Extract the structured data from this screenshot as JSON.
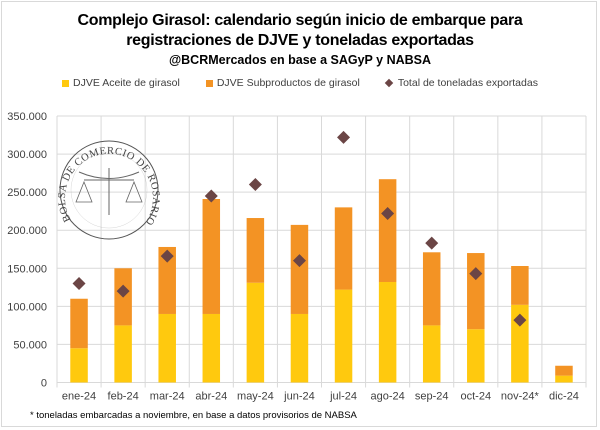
{
  "title": {
    "line1": "Complejo Girasol: calendario según inicio de embarque para",
    "line2": "registraciones de DJVE y toneladas exportadas",
    "source": "@BCRMercados en base a SAGyP y NABSA"
  },
  "watermark": {
    "text": "BOLSA DE COMERCIO DE ROSARIO"
  },
  "footnote": "* toneladas embarcadas a noviembre, en base a datos provisorios de NABSA",
  "colors": {
    "aceite": "#FFC90E",
    "subproductos": "#F39324",
    "total": "#6B4545",
    "grid": "#d9d9d9"
  },
  "chart_data": {
    "type": "bar",
    "stacked": true,
    "title": "Complejo Girasol: calendario según inicio de embarque para registraciones de DJVE y toneladas exportadas",
    "categories": [
      "ene-24",
      "feb-24",
      "mar-24",
      "abr-24",
      "may-24",
      "jun-24",
      "jul-24",
      "ago-24",
      "sep-24",
      "oct-24",
      "nov-24*",
      "dic-24"
    ],
    "series": [
      {
        "name": "DJVE Aceite de girasol",
        "kind": "bar",
        "values": [
          45000,
          75000,
          90000,
          90000,
          131000,
          90000,
          122000,
          132000,
          75000,
          70000,
          102000,
          9000
        ]
      },
      {
        "name": "DJVE Subproductos de girasol",
        "kind": "bar",
        "values": [
          65000,
          75000,
          88000,
          151000,
          85000,
          117000,
          108000,
          135000,
          96000,
          100000,
          51000,
          13000
        ]
      },
      {
        "name": "Total de toneladas exportadas",
        "kind": "scatter",
        "marker": "diamond",
        "values": [
          130000,
          120000,
          166000,
          245000,
          260000,
          160000,
          322000,
          222000,
          183000,
          143000,
          82000,
          null
        ]
      }
    ],
    "yticks": [
      "0",
      "50.000",
      "100.000",
      "150.000",
      "200.000",
      "250.000",
      "300.000",
      "350.000"
    ],
    "ylim": [
      0,
      350000
    ],
    "grid": true,
    "legend": "top-center",
    "xlabel": "",
    "ylabel": ""
  }
}
